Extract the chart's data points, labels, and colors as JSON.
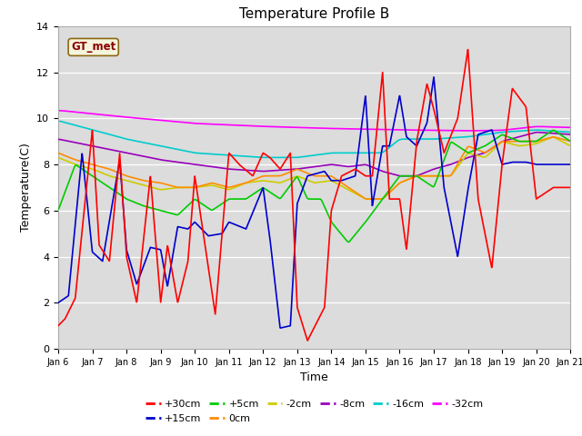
{
  "title": "Temperature Profile B",
  "xlabel": "Time",
  "ylabel": "Temperature(C)",
  "ylim": [
    0,
    14
  ],
  "yticks": [
    0,
    2,
    4,
    6,
    8,
    10,
    12,
    14
  ],
  "xtick_labels": [
    "Jan 6",
    "Jan 7",
    "Jan 8",
    "Jan 9",
    "Jan 10",
    "Jan 11",
    "Jan 12",
    "Jan 13",
    "Jan 14",
    "Jan 15",
    "Jan 16",
    "Jan 17",
    "Jan 18",
    "Jan 19",
    "Jan 20",
    "Jan 21"
  ],
  "annotation_text": "GT_met",
  "annotation_color": "#8B0000",
  "annotation_bg": "#F5F5DC",
  "bg_color": "#DCDCDC",
  "white_bg": "#FFFFFF",
  "series_colors": {
    "+30cm": "#FF0000",
    "+15cm": "#0000CC",
    "+5cm": "#00CC00",
    "0cm": "#FF8C00",
    "-2cm": "#CCCC00",
    "-8cm": "#9900BB",
    "-16cm": "#00CCCC",
    "-32cm": "#FF00FF"
  },
  "series_lw": 1.2,
  "legend_rows": [
    [
      "+30cm",
      "+15cm",
      "+5cm",
      "0cm",
      "-2cm",
      "-8cm"
    ],
    [
      "-16cm",
      "-32cm"
    ]
  ]
}
